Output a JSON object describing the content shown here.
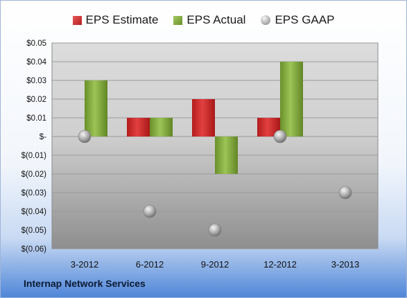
{
  "chart_data": {
    "type": "bar",
    "categories": [
      "3-2012",
      "6-2012",
      "9-2012",
      "12-2012",
      "3-2013"
    ],
    "series": [
      {
        "name": "EPS Estimate",
        "kind": "bar",
        "color": "#cc2a2a",
        "values": [
          null,
          0.01,
          0.02,
          0.01,
          null
        ]
      },
      {
        "name": "EPS Actual",
        "kind": "bar",
        "color": "#7fa83a",
        "values": [
          0.03,
          0.01,
          -0.02,
          0.04,
          null
        ]
      },
      {
        "name": "EPS GAAP",
        "kind": "scatter",
        "color": "#a8a8a8",
        "values": [
          0.0,
          -0.04,
          -0.05,
          0.0,
          -0.03
        ]
      }
    ],
    "ylim": [
      -0.06,
      0.05
    ],
    "yticks": [
      0.05,
      0.04,
      0.03,
      0.02,
      0.01,
      0.0,
      -0.01,
      -0.02,
      -0.03,
      -0.04,
      -0.05,
      -0.06
    ],
    "ytick_labels": [
      "$0.05",
      "$0.04",
      "$0.03",
      "$0.02",
      "$0.01",
      "$-",
      "$(0.01)",
      "$(0.02)",
      "$(0.03)",
      "$(0.04)",
      "$(0.05)",
      "$(0.06)"
    ],
    "grid": true,
    "legend": "top-center",
    "footer": "Internap Network Services"
  }
}
